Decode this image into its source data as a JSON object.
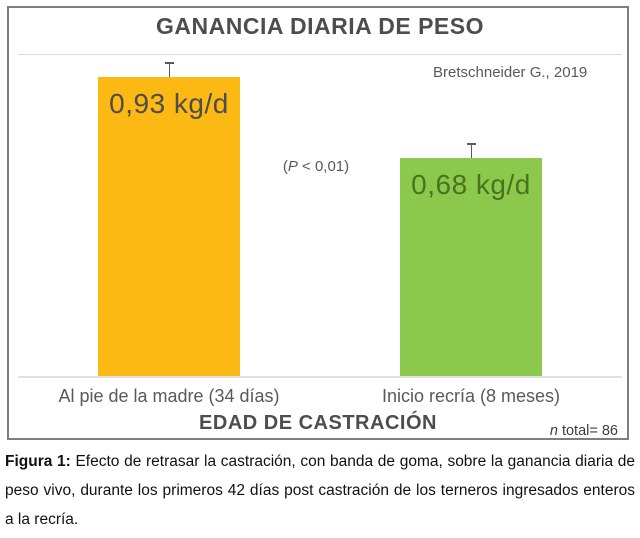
{
  "figure": {
    "title": "GANANCIA DIARIA DE PESO",
    "source": "Bretschneider G., 2019",
    "p_note": {
      "open": "(",
      "symbol": "P",
      "rest": " < 0,01)"
    },
    "n_note": {
      "symbol": "n",
      "rest": " total= 86"
    },
    "xlabel": "EDAD DE CASTRACIÓN"
  },
  "chart_data": {
    "type": "bar",
    "title": "GANANCIA DIARIA DE PESO",
    "xlabel": "EDAD DE CASTRACIÓN",
    "ylabel": "",
    "categories": [
      "Al pie de la madre (34 días)",
      "Inicio recría (8 meses)"
    ],
    "values": [
      0.93,
      0.68
    ],
    "value_labels": [
      "0,93 kg/d",
      "0,68 kg/d"
    ],
    "unit": "kg/d",
    "bar_colors": [
      "#FCB813",
      "#8CC84B"
    ],
    "value_label_colors": [
      "#4D4D4D",
      "#4A7221"
    ],
    "error_bars": true,
    "ylim": [
      0,
      1.0
    ],
    "grid": false,
    "legend": false,
    "annotations": [
      "Bretschneider G., 2019",
      "(P < 0,01)",
      "n total= 86"
    ]
  },
  "caption": {
    "label": "Figura 1:",
    "text": " Efecto de retrasar la castración, con banda de goma, sobre la ganancia diaria de peso vivo, durante los primeros 42 días post castración de los terneros ingresados enteros a la recría."
  }
}
